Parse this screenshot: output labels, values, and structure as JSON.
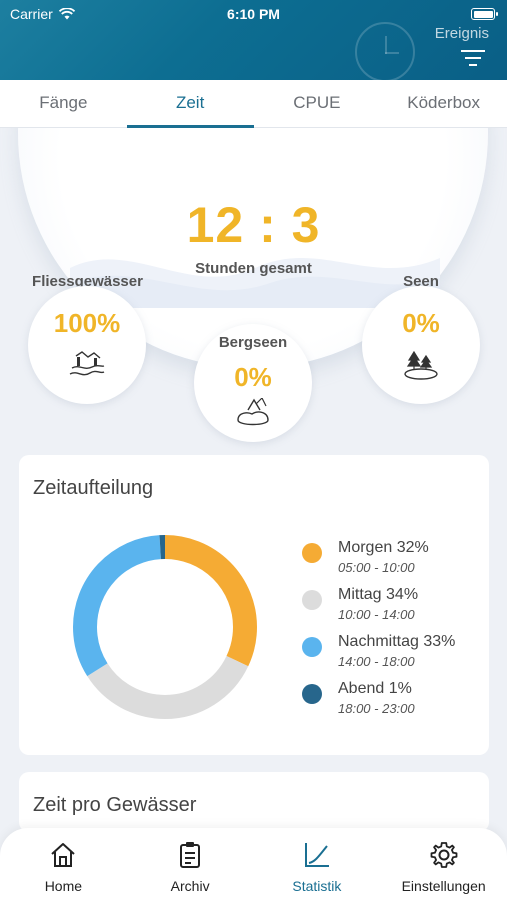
{
  "status": {
    "carrier": "Carrier",
    "time": "6:10 PM"
  },
  "header": {
    "action_label": "Ereignis"
  },
  "tabs": [
    {
      "label": "Fänge",
      "active": false
    },
    {
      "label": "Zeit",
      "active": true
    },
    {
      "label": "CPUE",
      "active": false
    },
    {
      "label": "Köderbox",
      "active": false
    }
  ],
  "summary": {
    "total_hours": "12 : 3",
    "total_label": "Stunden gesamt",
    "waters": [
      {
        "label": "Fliessgewässer",
        "percent": "100%",
        "icon": "river-icon"
      },
      {
        "label": "Bergseen",
        "percent": "0%",
        "icon": "mountain-lake-icon"
      },
      {
        "label": "Seen",
        "percent": "0%",
        "icon": "lake-icon"
      }
    ]
  },
  "time_split": {
    "title": "Zeitaufteilung",
    "legend": [
      {
        "label": "Morgen 32%",
        "range": "05:00 - 10:00",
        "color": "#f5ab34"
      },
      {
        "label": "Mittag 34%",
        "range": "10:00 - 14:00",
        "color": "#dcdcdc"
      },
      {
        "label": "Nachmittag 33%",
        "range": "14:00 - 18:00",
        "color": "#5ab4ee"
      },
      {
        "label": "Abend 1%",
        "range": "18:00 - 23:00",
        "color": "#27668c"
      }
    ]
  },
  "chart_data": {
    "type": "pie",
    "categories": [
      "Morgen",
      "Mittag",
      "Nachmittag",
      "Abend"
    ],
    "values": [
      32,
      34,
      33,
      1
    ],
    "colors": [
      "#f5ab34",
      "#dcdcdc",
      "#5ab4ee",
      "#27668c"
    ],
    "title": "Zeitaufteilung"
  },
  "next_section": {
    "title": "Zeit pro Gewässer"
  },
  "bottom_nav": [
    {
      "label": "Home",
      "icon": "home-icon"
    },
    {
      "label": "Archiv",
      "icon": "clipboard-icon"
    },
    {
      "label": "Statistik",
      "icon": "chart-icon",
      "active": true
    },
    {
      "label": "Einstellungen",
      "icon": "gear-icon"
    }
  ]
}
